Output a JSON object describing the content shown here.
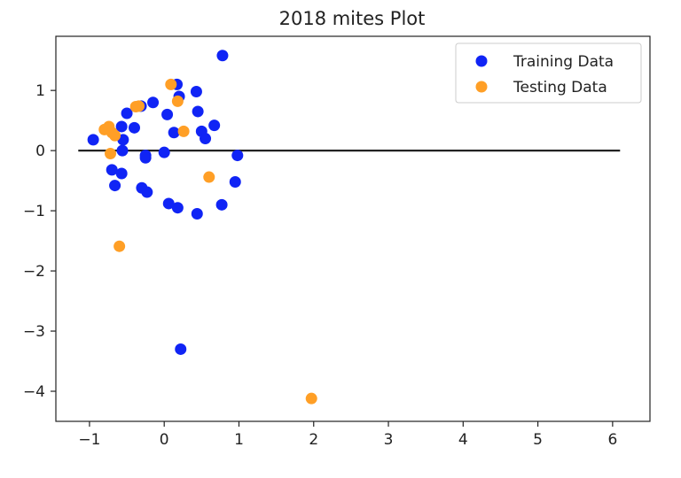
{
  "chart_data": {
    "type": "scatter",
    "title": "2018 mites Plot",
    "xlabel": "",
    "ylabel": "",
    "xlim": [
      -1.45,
      6.5
    ],
    "ylim": [
      -4.5,
      1.9
    ],
    "xticks": [
      -1,
      0,
      1,
      2,
      3,
      4,
      5,
      6
    ],
    "yticks": [
      1,
      0,
      -1,
      -2,
      -3,
      -4
    ],
    "xtick_labels": [
      "−1",
      "0",
      "1",
      "2",
      "3",
      "4",
      "5",
      "6"
    ],
    "ytick_labels": [
      "1",
      "0",
      "−1",
      "−2",
      "−3",
      "−4"
    ],
    "grid": false,
    "legend_position": "top-right",
    "hline": {
      "y": 0,
      "x_from": -1.15,
      "x_to": 6.1,
      "color": "#222222"
    },
    "series": [
      {
        "name": "Training Data",
        "color": "#1024f5",
        "points": [
          [
            0.78,
            1.58
          ],
          [
            0.17,
            1.1
          ],
          [
            0.2,
            0.9
          ],
          [
            0.43,
            0.98
          ],
          [
            -0.15,
            0.8
          ],
          [
            0.45,
            0.65
          ],
          [
            -0.5,
            0.62
          ],
          [
            0.04,
            0.6
          ],
          [
            -0.31,
            0.74
          ],
          [
            0.67,
            0.42
          ],
          [
            -0.57,
            0.4
          ],
          [
            -0.4,
            0.38
          ],
          [
            0.5,
            0.32
          ],
          [
            0.13,
            0.3
          ],
          [
            0.55,
            0.2
          ],
          [
            -0.55,
            0.18
          ],
          [
            -0.95,
            0.18
          ],
          [
            -0.56,
            0.0
          ],
          [
            -0.25,
            -0.08
          ],
          [
            -0.25,
            -0.12
          ],
          [
            0.0,
            -0.03
          ],
          [
            0.98,
            -0.08
          ],
          [
            -0.7,
            -0.32
          ],
          [
            -0.57,
            -0.38
          ],
          [
            -0.66,
            -0.58
          ],
          [
            -0.3,
            -0.62
          ],
          [
            -0.23,
            -0.69
          ],
          [
            0.95,
            -0.52
          ],
          [
            0.06,
            -0.88
          ],
          [
            0.18,
            -0.95
          ],
          [
            0.77,
            -0.9
          ],
          [
            0.44,
            -1.05
          ],
          [
            0.22,
            -3.3
          ]
        ]
      },
      {
        "name": "Testing Data",
        "color": "#ff9f26",
        "points": [
          [
            0.09,
            1.1
          ],
          [
            0.18,
            0.82
          ],
          [
            -0.38,
            0.73
          ],
          [
            -0.34,
            0.74
          ],
          [
            -0.74,
            0.4
          ],
          [
            -0.8,
            0.35
          ],
          [
            -0.7,
            0.3
          ],
          [
            -0.66,
            0.25
          ],
          [
            0.26,
            0.32
          ],
          [
            -0.72,
            -0.05
          ],
          [
            0.6,
            -0.44
          ],
          [
            -0.6,
            -1.59
          ],
          [
            1.97,
            -4.12
          ]
        ]
      }
    ]
  }
}
